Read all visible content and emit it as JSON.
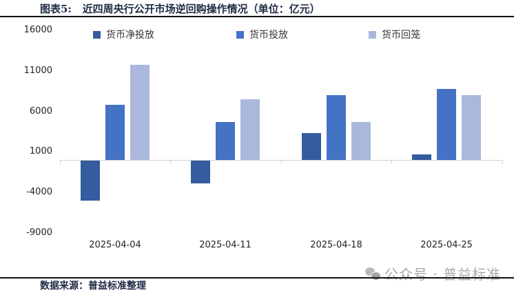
{
  "header": {
    "title": "图表5:   近四周央行公开市场逆回购操作情况（单位：亿元）"
  },
  "footer": {
    "source": "数据来源：普益标准整理"
  },
  "watermark": {
    "icon": "wechat-icon",
    "text": "公众号 · 普益标准"
  },
  "legend": [
    {
      "label": "货币净投放",
      "color": "#345C9E"
    },
    {
      "label": "货币投放",
      "color": "#4472C4"
    },
    {
      "label": "货币回笼",
      "color": "#A9B8DC"
    }
  ],
  "y_ticks": [
    "16000",
    "11000",
    "6000",
    "1000",
    "-4000",
    "-9000"
  ],
  "x_ticks": [
    "2025-04-04",
    "2025-04-11",
    "2025-04-18",
    "2025-04-25"
  ],
  "chart_data": {
    "type": "bar",
    "title": "近四周央行公开市场逆回购操作情况（单位：亿元）",
    "xlabel": "",
    "ylabel": "亿元",
    "categories": [
      "2025-04-04",
      "2025-04-11",
      "2025-04-18",
      "2025-04-25"
    ],
    "series": [
      {
        "name": "货币净投放",
        "color": "#345C9E",
        "values": [
          -4900,
          -2800,
          3300,
          700
        ]
      },
      {
        "name": "货币投放",
        "color": "#4472C4",
        "values": [
          6800,
          4700,
          8000,
          8700
        ]
      },
      {
        "name": "货币回笼",
        "color": "#A9B8DC",
        "values": [
          11700,
          7500,
          4700,
          8000
        ]
      }
    ],
    "ylim": [
      -9000,
      16000
    ],
    "yticks": [
      16000,
      11000,
      6000,
      1000,
      -4000,
      -9000
    ],
    "grid": false,
    "legend_position": "top"
  }
}
